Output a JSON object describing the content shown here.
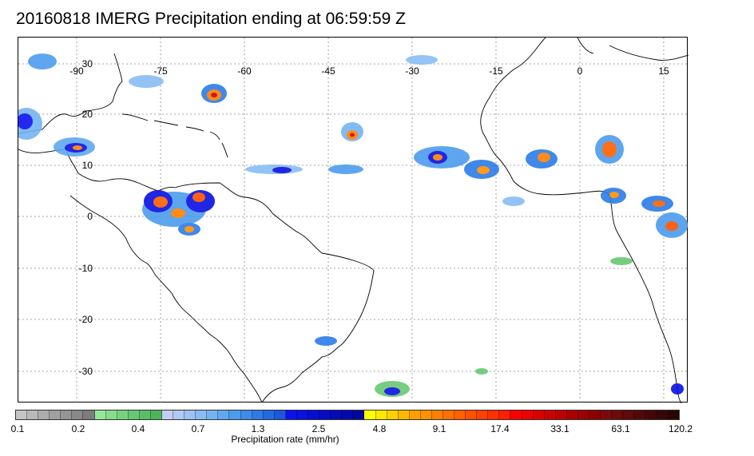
{
  "title": "20160818 IMERG Precipitation ending at 06:59:59 Z",
  "map": {
    "lon_labels": [
      "-90",
      "-75",
      "-60",
      "-45",
      "-30",
      "-15",
      "0",
      "15"
    ],
    "lat_labels": [
      "30",
      "20",
      "10",
      "0",
      "-10",
      "-20",
      "-30"
    ]
  },
  "colorbar": {
    "title": "Precipitation rate (mm/hr)",
    "tick_labels": [
      "0.1",
      "0.2",
      "0.4",
      "0.7",
      "1.3",
      "2.5",
      "4.8",
      "9.1",
      "17.4",
      "33.1",
      "63.1",
      "120.2"
    ],
    "colors": [
      "#c4c4c4",
      "#b8b8b8",
      "#acacac",
      "#a0a0a0",
      "#949494",
      "#888888",
      "#7c7c7c",
      "#96e69a",
      "#86dc8c",
      "#76d27e",
      "#68c872",
      "#5abe66",
      "#4eb45a",
      "#c6cdf4",
      "#b2c8f4",
      "#9ec2f4",
      "#88bcf4",
      "#74b4f2",
      "#60a8f0",
      "#4c9cee",
      "#3c8cec",
      "#2c7ce8",
      "#226ae4",
      "#1a58dc",
      "#0a12f0",
      "#0810e2",
      "#060ed4",
      "#050cc6",
      "#040ab8",
      "#0309aa",
      "#02089c",
      "#ffff00",
      "#ffe800",
      "#ffd000",
      "#ffb800",
      "#ffa000",
      "#ff9000",
      "#ff8000",
      "#ff7000",
      "#ff6000",
      "#ff5000",
      "#ff4000",
      "#ff3000",
      "#ff2000",
      "#ff0000",
      "#ee0000",
      "#dc0000",
      "#cc0000",
      "#bc0000",
      "#ac0000",
      "#9c0000",
      "#8c0000",
      "#7c0a0a",
      "#6e0a0a",
      "#600a0a",
      "#520808",
      "#440808",
      "#380606",
      "#2c0404"
    ]
  }
}
